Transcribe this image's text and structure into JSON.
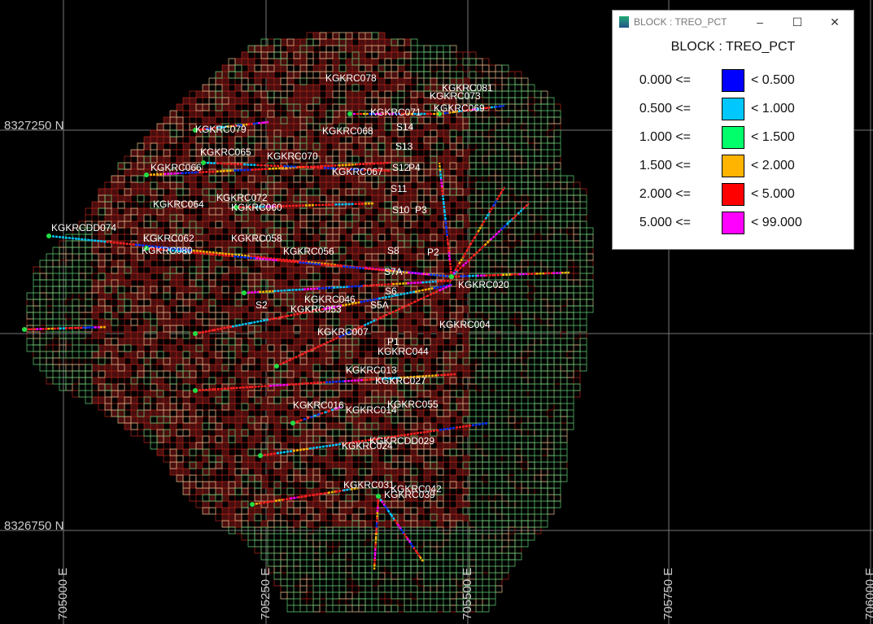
{
  "viewer": {
    "northings": [
      "8327250 N",
      "8326750 N"
    ],
    "eastings": [
      "705000 E",
      "705250 E",
      "705500 E",
      "705750 E",
      "706000 E"
    ],
    "holes": [
      "KGKRC078",
      "KGKRC081",
      "KGKRC073",
      "KGKRC071",
      "KGKRC069",
      "KGKRC068",
      "S14",
      "KGKRC079",
      "S13",
      "KGKRC065",
      "KGKRC070",
      "KGKRC066",
      "KGKRC067",
      "S12",
      "P4",
      "S11",
      "KGKRC072",
      "KGKRC064",
      "KGKRC060",
      "S10",
      "P3",
      "KGKRCDD074",
      "KGKRC062",
      "KGKRC058",
      "KGKRC080",
      "KGKRC056",
      "S8",
      "P2",
      "S7A",
      "KGKRC020",
      "S6",
      "KGKRC053",
      "S5A",
      "KGKRC046",
      "S2",
      "KGKRC004",
      "KGKRC007",
      "P1",
      "KGKRC044",
      "KGKRC013",
      "KGKRC027",
      "KGKRC016",
      "KGKRC055",
      "KGKRC014",
      "KGKRCDD029",
      "KGKRC024",
      "KGKRC031",
      "KGKRC042",
      "KGKRC039"
    ]
  },
  "legend_window": {
    "title": "BLOCK : TREO_PCT",
    "heading": "BLOCK : TREO_PCT",
    "rows": [
      {
        "from": "0.000 <=",
        "to": "< 0.500",
        "color": "#0000ff"
      },
      {
        "from": "0.500 <=",
        "to": "< 1.000",
        "color": "#00c8ff"
      },
      {
        "from": "1.000 <=",
        "to": "< 1.500",
        "color": "#00ff6a"
      },
      {
        "from": "1.500 <=",
        "to": "< 2.000",
        "color": "#ffb400"
      },
      {
        "from": "2.000 <=",
        "to": "< 5.000",
        "color": "#ff0000"
      },
      {
        "from": "5.000 <=",
        "to": "< 99.000",
        "color": "#ff00ff"
      }
    ]
  }
}
